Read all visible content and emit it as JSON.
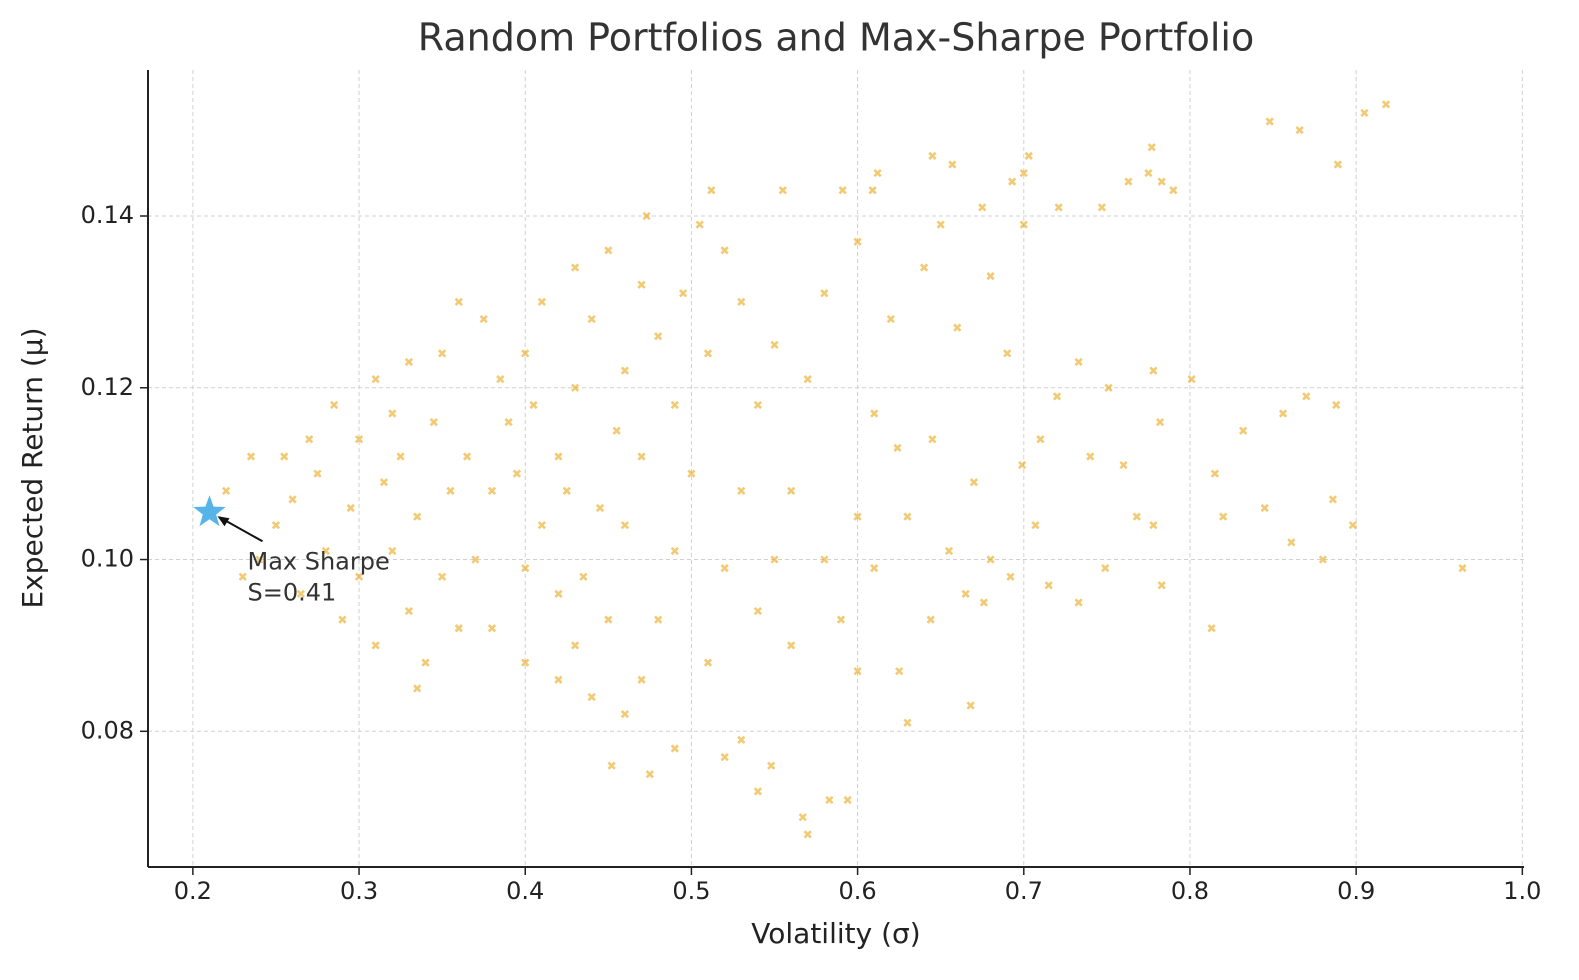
{
  "chart_data": {
    "type": "scatter",
    "title": "Random Portfolios and Max-Sharpe Portfolio",
    "x_label": "Volatility (σ)",
    "y_label": "Expected Return (μ)",
    "color": "#e69f00",
    "grid": true,
    "xlim": [
      0.173,
      1.001
    ],
    "ylim": [
      0.0642,
      0.157
    ],
    "xticks": [
      0.2,
      0.3,
      0.4,
      0.5,
      0.6,
      0.7,
      0.8,
      0.9,
      {
        "value": 1,
        "label": "1.0"
      }
    ],
    "yticks": [
      0.08,
      {
        "value": 0.1,
        "label": "0.10"
      },
      0.12,
      0.14
    ],
    "x": [
      0.918,
      0.905,
      0.848,
      0.866,
      0.889,
      0.777,
      0.775,
      0.783,
      0.79,
      0.763,
      0.747,
      0.703,
      0.7,
      0.693,
      0.721,
      0.675,
      0.645,
      0.657,
      0.612,
      0.609,
      0.591,
      0.555,
      0.512,
      0.473,
      0.964,
      0.898,
      0.886,
      0.88,
      0.861,
      0.845,
      0.813,
      0.82,
      0.815,
      0.832,
      0.856,
      0.87,
      0.888,
      0.801,
      0.778,
      0.782,
      0.751,
      0.733,
      0.72,
      0.74,
      0.76,
      0.733,
      0.715,
      0.783,
      0.749,
      0.768,
      0.778,
      0.699,
      0.707,
      0.692,
      0.668,
      0.63,
      0.594,
      0.583,
      0.57,
      0.567,
      0.548,
      0.53,
      0.54,
      0.49,
      0.452,
      0.475,
      0.52,
      0.6,
      0.625,
      0.644,
      0.665,
      0.676,
      0.655,
      0.67,
      0.69,
      0.66,
      0.645,
      0.624,
      0.61,
      0.62,
      0.64,
      0.68,
      0.7,
      0.65,
      0.6,
      0.58,
      0.57,
      0.56,
      0.58,
      0.59,
      0.56,
      0.54,
      0.52,
      0.53,
      0.54,
      0.53,
      0.52,
      0.505,
      0.495,
      0.48,
      0.49,
      0.5,
      0.49,
      0.48,
      0.47,
      0.46,
      0.44,
      0.43,
      0.42,
      0.41,
      0.42,
      0.43,
      0.44,
      0.45,
      0.43,
      0.41,
      0.4,
      0.39,
      0.38,
      0.37,
      0.38,
      0.4,
      0.42,
      0.4,
      0.395,
      0.385,
      0.375,
      0.36,
      0.35,
      0.345,
      0.355,
      0.35,
      0.36,
      0.34,
      0.33,
      0.32,
      0.315,
      0.32,
      0.33,
      0.31,
      0.3,
      0.295,
      0.3,
      0.29,
      0.28,
      0.275,
      0.285,
      0.27,
      0.26,
      0.255,
      0.25,
      0.24,
      0.23,
      0.22,
      0.235,
      0.265,
      0.31,
      0.335,
      0.45,
      0.46,
      0.47,
      0.46,
      0.47,
      0.455,
      0.445,
      0.435,
      0.425,
      0.405,
      0.365,
      0.335,
      0.325,
      0.51,
      0.51,
      0.55,
      0.55,
      0.6,
      0.61,
      0.63,
      0.68,
      0.71
    ],
    "values": [
      0.153,
      0.152,
      0.151,
      0.15,
      0.146,
      0.148,
      0.145,
      0.144,
      0.143,
      0.144,
      0.141,
      0.147,
      0.145,
      0.144,
      0.141,
      0.141,
      0.147,
      0.146,
      0.145,
      0.143,
      0.143,
      0.143,
      0.143,
      0.14,
      0.099,
      0.104,
      0.107,
      0.1,
      0.102,
      0.106,
      0.092,
      0.105,
      0.11,
      0.115,
      0.117,
      0.119,
      0.118,
      0.121,
      0.122,
      0.116,
      0.12,
      0.123,
      0.119,
      0.112,
      0.111,
      0.095,
      0.097,
      0.097,
      0.099,
      0.105,
      0.104,
      0.111,
      0.104,
      0.098,
      0.083,
      0.081,
      0.072,
      0.072,
      0.068,
      0.07,
      0.076,
      0.079,
      0.073,
      0.078,
      0.076,
      0.075,
      0.077,
      0.087,
      0.087,
      0.093,
      0.096,
      0.095,
      0.101,
      0.109,
      0.124,
      0.127,
      0.114,
      0.113,
      0.117,
      0.128,
      0.134,
      0.133,
      0.139,
      0.139,
      0.137,
      0.131,
      0.121,
      0.108,
      0.1,
      0.093,
      0.09,
      0.094,
      0.099,
      0.108,
      0.118,
      0.13,
      0.136,
      0.139,
      0.131,
      0.126,
      0.118,
      0.11,
      0.101,
      0.093,
      0.086,
      0.082,
      0.084,
      0.09,
      0.096,
      0.104,
      0.112,
      0.12,
      0.128,
      0.136,
      0.134,
      0.13,
      0.124,
      0.116,
      0.108,
      0.1,
      0.092,
      0.088,
      0.086,
      0.099,
      0.11,
      0.121,
      0.128,
      0.13,
      0.124,
      0.116,
      0.108,
      0.098,
      0.092,
      0.088,
      0.094,
      0.101,
      0.109,
      0.117,
      0.123,
      0.121,
      0.114,
      0.106,
      0.098,
      0.093,
      0.101,
      0.11,
      0.118,
      0.114,
      0.107,
      0.112,
      0.104,
      0.1,
      0.098,
      0.108,
      0.112,
      0.096,
      0.09,
      0.085,
      0.093,
      0.104,
      0.112,
      0.122,
      0.132,
      0.115,
      0.106,
      0.098,
      0.108,
      0.118,
      0.112,
      0.105,
      0.112,
      0.124,
      0.088,
      0.1,
      0.125,
      0.105,
      0.099,
      0.105,
      0.1,
      0.114
    ],
    "annotation": {
      "lines": [
        "Max Sharpe",
        "S=0.41"
      ],
      "x": 0.21,
      "y": 0.1055,
      "color": "#56b4e9"
    }
  }
}
